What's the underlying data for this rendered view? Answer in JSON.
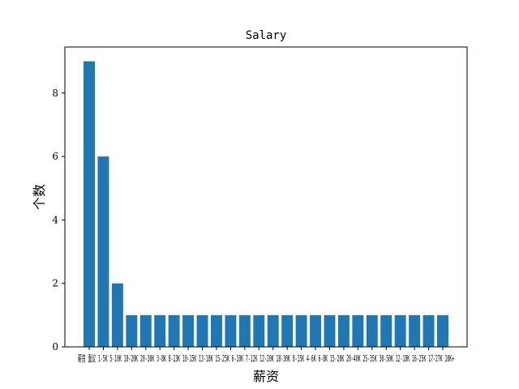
{
  "chart_data": {
    "type": "bar",
    "title": "Salary",
    "xlabel": "薪资",
    "ylabel": "个数",
    "ylim": [
      0,
      9.45
    ],
    "yticks": [
      0,
      2,
      4,
      6,
      8
    ],
    "grid": false,
    "bar_color": "#1f77b4",
    "categories": [
      "薪资",
      "面议",
      "1-5K",
      "5-10K",
      "10-20K",
      "20-30K",
      "3-8K",
      "8-13K",
      "10-15K",
      "13-18K",
      "15-25K",
      "6-10K",
      "7-12K",
      "12-20K",
      "18-30K",
      "8-15K",
      "4-6K",
      "6-8K",
      "15-20K",
      "20-40K",
      "25-35K",
      "30-50K",
      "12-18K",
      "16-25K",
      "17-27K",
      "10K+"
    ],
    "x_tick_text": "薪资 面议 1-5K 5-10K 10-20K 20-30K 3-8K 8-13K 10-15K 13-18K 15-25K 6-10K 7-12K 12-20K 18-30K 8-15K 4-6K 6-8K 15-20K 20-40K 25-35K 30-50K 12-18K 16-25K 17-27K 10K+",
    "values": [
      9,
      6,
      2,
      1,
      1,
      1,
      1,
      1,
      1,
      1,
      1,
      1,
      1,
      1,
      1,
      1,
      1,
      1,
      1,
      1,
      1,
      1,
      1,
      1,
      1,
      1
    ]
  }
}
